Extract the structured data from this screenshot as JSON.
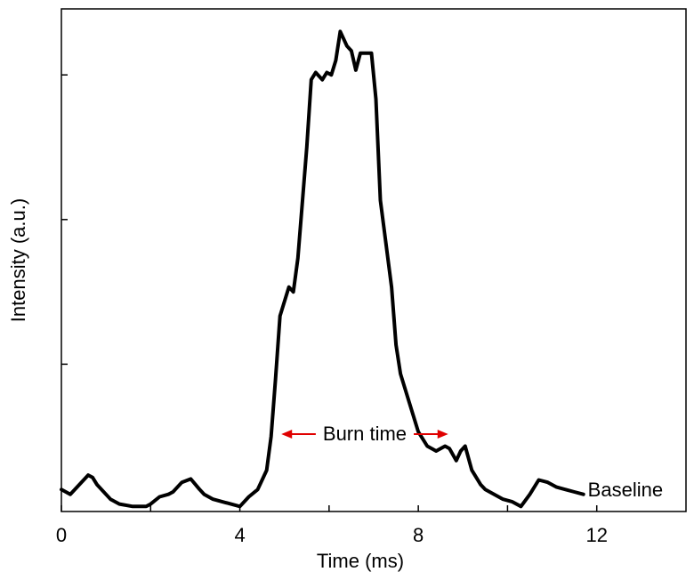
{
  "chart_data": {
    "type": "line",
    "title": "",
    "xlabel": "Time (ms)",
    "ylabel": "Intensity (a.u.)",
    "xlim": [
      0,
      14
    ],
    "ylim": [
      0,
      1
    ],
    "xticks": [
      0,
      2,
      4,
      6,
      8,
      10,
      12
    ],
    "xtick_labels": [
      "0",
      "",
      "4",
      "",
      "8",
      "",
      "12"
    ],
    "yticks": [
      0.3,
      0.6,
      0.9
    ],
    "ytick_labels": [
      "",
      "",
      ""
    ],
    "grid": false,
    "legend": "none",
    "line_color": "#000000",
    "annotation_color": "#e00000",
    "series": [
      {
        "x": [
          0.0,
          0.2,
          0.4,
          0.6,
          0.7,
          0.8,
          1.0,
          1.1,
          1.3,
          1.6,
          1.9,
          2.0,
          2.2,
          2.4,
          2.5,
          2.7,
          2.9,
          3.1,
          3.2,
          3.4,
          3.6,
          3.8,
          4.0,
          4.2,
          4.4,
          4.6,
          4.7,
          4.8,
          4.9,
          5.1,
          5.2,
          5.3,
          5.5,
          5.6,
          5.7,
          5.85,
          5.95,
          6.05,
          6.15,
          6.25,
          6.4,
          6.5,
          6.6,
          6.7,
          6.8,
          6.95,
          7.05,
          7.15,
          7.4,
          7.5,
          7.6,
          7.8,
          8.0,
          8.2,
          8.4,
          8.6,
          8.7,
          8.85,
          8.95,
          9.05,
          9.2,
          9.4,
          9.5,
          9.7,
          9.9,
          10.1,
          10.3,
          10.5,
          10.7,
          10.9,
          11.1,
          11.3,
          11.5,
          11.7
        ],
        "y": [
          0.04,
          0.03,
          0.05,
          0.07,
          0.065,
          0.05,
          0.03,
          0.02,
          0.01,
          0.005,
          0.005,
          0.01,
          0.025,
          0.03,
          0.035,
          0.055,
          0.062,
          0.04,
          0.03,
          0.02,
          0.015,
          0.01,
          0.005,
          0.025,
          0.04,
          0.08,
          0.15,
          0.27,
          0.4,
          0.46,
          0.45,
          0.52,
          0.75,
          0.89,
          0.905,
          0.89,
          0.905,
          0.9,
          0.93,
          0.99,
          0.96,
          0.95,
          0.91,
          0.945,
          0.945,
          0.945,
          0.85,
          0.64,
          0.46,
          0.34,
          0.28,
          0.22,
          0.16,
          0.13,
          0.12,
          0.13,
          0.125,
          0.1,
          0.12,
          0.13,
          0.08,
          0.05,
          0.04,
          0.03,
          0.02,
          0.015,
          0.005,
          0.03,
          0.06,
          0.055,
          0.045,
          0.04,
          0.035,
          0.03
        ]
      }
    ],
    "annotations": {
      "burn_time": {
        "text": "Burn time",
        "x_start": 4.93,
        "x_end": 8.67,
        "y": 0.155
      },
      "baseline": {
        "text": "Baseline",
        "x": 11.8,
        "y": 0.04
      }
    }
  }
}
